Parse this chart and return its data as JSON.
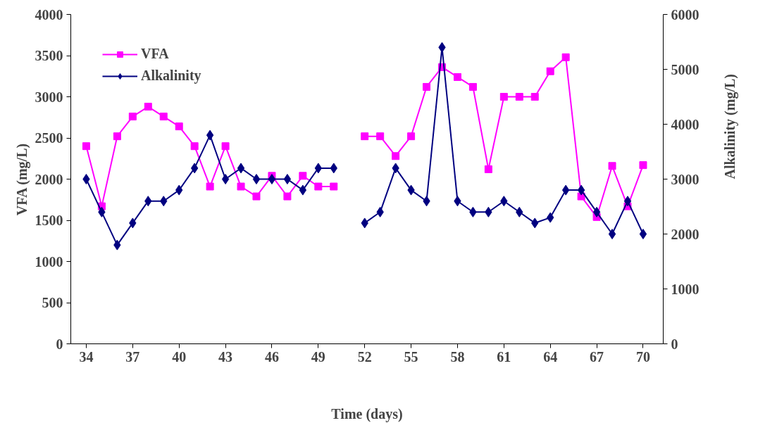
{
  "chart_data": {
    "type": "line",
    "xlabel": "Time (days)",
    "ylabel": "VFA (mg/L)",
    "y2label": "Alkalinity (mg/L)",
    "x": [
      34,
      35,
      36,
      37,
      38,
      39,
      40,
      41,
      42,
      43,
      44,
      45,
      46,
      47,
      48,
      49,
      50,
      51,
      52,
      53,
      54,
      55,
      56,
      57,
      58,
      59,
      60,
      61,
      62,
      63,
      64,
      65,
      66,
      67,
      68,
      69,
      70
    ],
    "xlim": [
      33,
      71.3
    ],
    "xticks": [
      34,
      37,
      40,
      43,
      46,
      49,
      52,
      55,
      58,
      61,
      64,
      67,
      70
    ],
    "ylim": [
      0,
      4000
    ],
    "yticks": [
      0,
      500,
      1000,
      1500,
      2000,
      2500,
      3000,
      3500,
      4000
    ],
    "y2lim": [
      0,
      6000
    ],
    "y2ticks": [
      0,
      1000,
      2000,
      3000,
      4000,
      5000,
      6000
    ],
    "grid": false,
    "legend": "top left",
    "series": [
      {
        "name": "VFA",
        "color": "#ff00ff",
        "marker": "square",
        "values": [
          2400,
          1670,
          2520,
          2760,
          2880,
          2760,
          2640,
          2400,
          1910,
          2400,
          1910,
          1790,
          2040,
          1790,
          2040,
          1910,
          1910,
          null,
          2520,
          2520,
          2280,
          2520,
          3120,
          3360,
          3240,
          3120,
          2120,
          3000,
          3000,
          3000,
          3310,
          3480,
          1790,
          1540,
          2160,
          1670,
          2170
        ]
      },
      {
        "name": "Alkalinity",
        "color": "#000080",
        "marker": "diamond",
        "axis": "y2",
        "values": [
          3000,
          2400,
          1800,
          2200,
          2600,
          2600,
          2800,
          3200,
          3800,
          3000,
          3200,
          3000,
          3000,
          3000,
          2800,
          3200,
          3200,
          null,
          2200,
          2400,
          3200,
          2800,
          2600,
          5400,
          2600,
          2400,
          2400,
          2600,
          2400,
          2200,
          2300,
          2800,
          2800,
          2400,
          2000,
          2600,
          2000
        ]
      }
    ]
  }
}
